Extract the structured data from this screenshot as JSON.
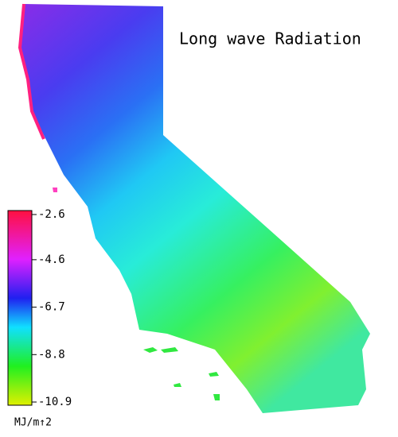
{
  "title": "Long wave Radiation",
  "colorbar": {
    "ticks": [
      -2.6,
      -4.6,
      -6.7,
      -8.8,
      -10.9
    ],
    "unit": "MJ/m↑2"
  }
}
